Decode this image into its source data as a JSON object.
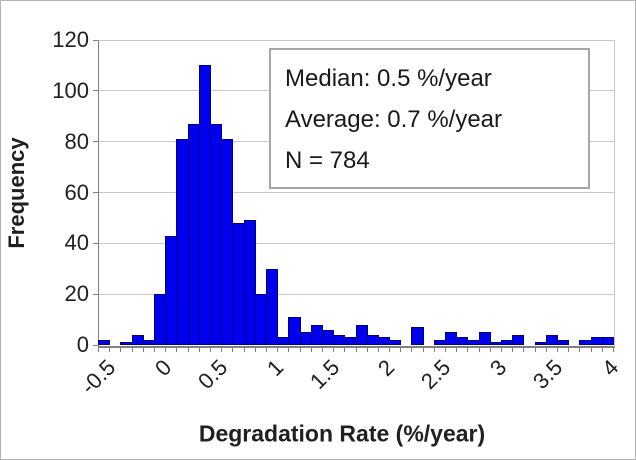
{
  "chart_data": {
    "type": "bar",
    "subtype": "histogram",
    "title": "",
    "xlabel": "Degradation Rate (%/year)",
    "ylabel": "Frequency",
    "ylim": [
      0,
      120
    ],
    "yticks": [
      0,
      20,
      40,
      60,
      80,
      100,
      120
    ],
    "bin_width": 0.1,
    "x_range": [
      -0.5,
      4.0
    ],
    "categories": [
      -0.5,
      -0.4,
      -0.3,
      -0.2,
      -0.1,
      0,
      0.1,
      0.2,
      0.3,
      0.4,
      0.5,
      0.6,
      0.7,
      0.8,
      0.9,
      1,
      1.1,
      1.2,
      1.3,
      1.4,
      1.5,
      1.6,
      1.7,
      1.8,
      1.9,
      2,
      2.1,
      2.2,
      2.3,
      2.4,
      2.5,
      2.6,
      2.7,
      2.8,
      2.9,
      3,
      3.1,
      3.2,
      3.3,
      3.4,
      3.5,
      3.6,
      3.7,
      3.8,
      3.9,
      4
    ],
    "values": [
      2,
      0,
      1,
      4,
      2,
      20,
      43,
      81,
      87,
      110,
      87,
      81,
      48,
      49,
      20,
      30,
      3,
      11,
      5,
      8,
      6,
      4,
      3,
      8,
      4,
      3,
      2,
      0,
      7,
      0,
      2,
      5,
      3,
      2,
      5,
      1,
      2,
      4,
      0,
      1,
      4,
      2,
      0,
      2,
      3,
      3
    ],
    "xtick_labels": [
      "-0.5",
      "0",
      "0.5",
      "1",
      "1.5",
      "2",
      "2.5",
      "3",
      "3.5",
      "4"
    ],
    "xtick_label_every": 5,
    "grid": true,
    "legend": "none",
    "colors": {
      "bar_fill": "#0000EE",
      "bar_border": "#000080",
      "gridline": "#c9c9c9",
      "axis_line": "#808080",
      "text": "#1f1f1f"
    }
  },
  "annotation_box": {
    "line1": "Median: 0.5 %/year",
    "line2": "Average: 0.7 %/year",
    "line3": "N = 784"
  }
}
